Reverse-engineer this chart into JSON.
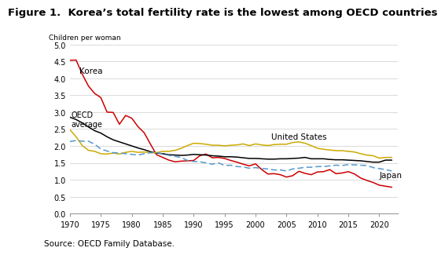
{
  "title": "Figure 1.  Korea’s total fertility rate is the lowest among OECD countries",
  "ylabel": "Children per woman",
  "source": "Source: OECD Family Database.",
  "xlim": [
    1970,
    2023
  ],
  "ylim": [
    0.0,
    5.0
  ],
  "yticks": [
    0.0,
    0.5,
    1.0,
    1.5,
    2.0,
    2.5,
    3.0,
    3.5,
    4.0,
    4.5,
    5.0
  ],
  "xticks": [
    1970,
    1975,
    1980,
    1985,
    1990,
    1995,
    2000,
    2005,
    2010,
    2015,
    2020
  ],
  "korea": {
    "x": [
      1970,
      1971,
      1972,
      1973,
      1974,
      1975,
      1976,
      1977,
      1978,
      1979,
      1980,
      1981,
      1982,
      1983,
      1984,
      1985,
      1986,
      1987,
      1988,
      1989,
      1990,
      1991,
      1992,
      1993,
      1994,
      1995,
      1996,
      1997,
      1998,
      1999,
      2000,
      2001,
      2002,
      2003,
      2004,
      2005,
      2006,
      2007,
      2008,
      2009,
      2010,
      2011,
      2012,
      2013,
      2014,
      2015,
      2016,
      2017,
      2018,
      2019,
      2020,
      2021,
      2022
    ],
    "y": [
      4.53,
      4.54,
      4.12,
      3.77,
      3.55,
      3.43,
      3.0,
      2.99,
      2.64,
      2.9,
      2.82,
      2.57,
      2.39,
      2.06,
      1.74,
      1.66,
      1.58,
      1.53,
      1.55,
      1.56,
      1.57,
      1.71,
      1.76,
      1.65,
      1.66,
      1.63,
      1.57,
      1.52,
      1.46,
      1.41,
      1.47,
      1.3,
      1.17,
      1.18,
      1.15,
      1.08,
      1.12,
      1.25,
      1.19,
      1.15,
      1.23,
      1.24,
      1.3,
      1.18,
      1.2,
      1.24,
      1.17,
      1.05,
      0.98,
      0.92,
      0.84,
      0.81,
      0.78
    ],
    "color": "#cc0000",
    "label": "Korea",
    "ann_x": 1971.5,
    "ann_y": 4.15
  },
  "oecd": {
    "x": [
      1970,
      1971,
      1972,
      1973,
      1974,
      1975,
      1976,
      1977,
      1978,
      1979,
      1980,
      1981,
      1982,
      1983,
      1984,
      1985,
      1986,
      1987,
      1988,
      1989,
      1990,
      1991,
      1992,
      1993,
      1994,
      1995,
      1996,
      1997,
      1998,
      1999,
      2000,
      2001,
      2002,
      2003,
      2004,
      2005,
      2006,
      2007,
      2008,
      2009,
      2010,
      2011,
      2012,
      2013,
      2014,
      2015,
      2016,
      2017,
      2018,
      2019,
      2020,
      2021,
      2022
    ],
    "y": [
      2.85,
      2.78,
      2.68,
      2.56,
      2.45,
      2.38,
      2.27,
      2.18,
      2.12,
      2.06,
      2.0,
      1.94,
      1.89,
      1.83,
      1.79,
      1.77,
      1.74,
      1.73,
      1.72,
      1.73,
      1.75,
      1.74,
      1.73,
      1.71,
      1.7,
      1.68,
      1.68,
      1.67,
      1.65,
      1.63,
      1.63,
      1.62,
      1.61,
      1.61,
      1.62,
      1.62,
      1.63,
      1.64,
      1.66,
      1.62,
      1.62,
      1.62,
      1.6,
      1.59,
      1.59,
      1.58,
      1.57,
      1.56,
      1.54,
      1.52,
      1.52,
      1.58,
      1.58
    ],
    "color": "#000000",
    "label": "OECD\naverage",
    "ann_x": 1970.2,
    "ann_y": 2.58
  },
  "us": {
    "x": [
      1970,
      1971,
      1972,
      1973,
      1974,
      1975,
      1976,
      1977,
      1978,
      1979,
      1980,
      1981,
      1982,
      1983,
      1984,
      1985,
      1986,
      1987,
      1988,
      1989,
      1990,
      1991,
      1992,
      1993,
      1994,
      1995,
      1996,
      1997,
      1998,
      1999,
      2000,
      2001,
      2002,
      2003,
      2004,
      2005,
      2006,
      2007,
      2008,
      2009,
      2010,
      2011,
      2012,
      2013,
      2014,
      2015,
      2016,
      2017,
      2018,
      2019,
      2020,
      2021,
      2022
    ],
    "y": [
      2.48,
      2.27,
      2.01,
      1.87,
      1.84,
      1.77,
      1.76,
      1.79,
      1.76,
      1.81,
      1.84,
      1.81,
      1.82,
      1.8,
      1.8,
      1.84,
      1.84,
      1.87,
      1.93,
      2.01,
      2.08,
      2.07,
      2.05,
      2.02,
      2.02,
      2.0,
      2.02,
      2.03,
      2.06,
      2.01,
      2.06,
      2.03,
      2.01,
      2.04,
      2.05,
      2.05,
      2.1,
      2.12,
      2.08,
      2.01,
      1.93,
      1.9,
      1.88,
      1.86,
      1.86,
      1.84,
      1.82,
      1.77,
      1.73,
      1.71,
      1.64,
      1.66,
      1.66
    ],
    "color": "#ccaa00",
    "label": "United States",
    "ann_x": 2002.5,
    "ann_y": 2.2
  },
  "japan": {
    "x": [
      1970,
      1971,
      1972,
      1973,
      1974,
      1975,
      1976,
      1977,
      1978,
      1979,
      1980,
      1981,
      1982,
      1983,
      1984,
      1985,
      1986,
      1987,
      1988,
      1989,
      1990,
      1991,
      1992,
      1993,
      1994,
      1995,
      1996,
      1997,
      1998,
      1999,
      2000,
      2001,
      2002,
      2003,
      2004,
      2005,
      2006,
      2007,
      2008,
      2009,
      2010,
      2011,
      2012,
      2013,
      2014,
      2015,
      2016,
      2017,
      2018,
      2019,
      2020,
      2021,
      2022
    ],
    "y": [
      2.13,
      2.16,
      2.14,
      2.14,
      2.05,
      1.91,
      1.85,
      1.8,
      1.79,
      1.77,
      1.75,
      1.73,
      1.77,
      1.8,
      1.81,
      1.76,
      1.72,
      1.69,
      1.66,
      1.57,
      1.54,
      1.53,
      1.5,
      1.46,
      1.5,
      1.42,
      1.43,
      1.39,
      1.38,
      1.34,
      1.36,
      1.33,
      1.32,
      1.29,
      1.29,
      1.26,
      1.32,
      1.34,
      1.37,
      1.37,
      1.39,
      1.39,
      1.41,
      1.43,
      1.42,
      1.45,
      1.44,
      1.43,
      1.42,
      1.36,
      1.33,
      1.3,
      1.26
    ],
    "color": "#5599cc",
    "label": "Japan",
    "ann_x": 2020.0,
    "ann_y": 1.08
  },
  "background_color": "#ffffff",
  "grid_color": "#cccccc",
  "tick_fontsize": 7,
  "ylabel_fontsize": 6.5,
  "annotation_fontsize": 7.5,
  "title_fontsize": 9.5,
  "source_fontsize": 7.5
}
